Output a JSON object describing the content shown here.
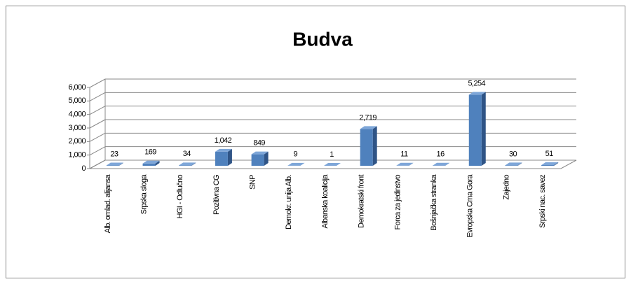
{
  "chart_data": {
    "type": "bar3d",
    "title": "Budva",
    "categories": [
      "Alb. omlad. alijansa",
      "Srpska sloga",
      "HGI - Odlučno",
      "Pozitivna CG",
      "SNP",
      "Demokr. unija Alb.",
      "Albanska koalicija",
      "Demokratski front",
      "Forca za jedinstvo",
      "Bošnjačka stranka",
      "Evropska Crna Gora",
      "Zajedno",
      "Srpski nac. savez"
    ],
    "values": [
      23,
      169,
      34,
      1042,
      849,
      9,
      1,
      2719,
      11,
      16,
      5254,
      30,
      51
    ],
    "value_labels": [
      "23",
      "169",
      "34",
      "1,042",
      "849",
      "9",
      "1",
      "2,719",
      "11",
      "16",
      "5,254",
      "30",
      "51"
    ],
    "color": "#4f81bd",
    "ylim": [
      0,
      6000
    ],
    "yticks": [
      0,
      {
        "value": 1000,
        "label": "1,000"
      },
      {
        "value": 2000,
        "label": "2,000"
      },
      {
        "value": 3000,
        "label": "3,000"
      },
      {
        "value": 4000,
        "label": "4,000"
      },
      {
        "value": 5000,
        "label": "5,000"
      },
      {
        "value": 6000,
        "label": "6,000"
      }
    ],
    "grid": true
  }
}
